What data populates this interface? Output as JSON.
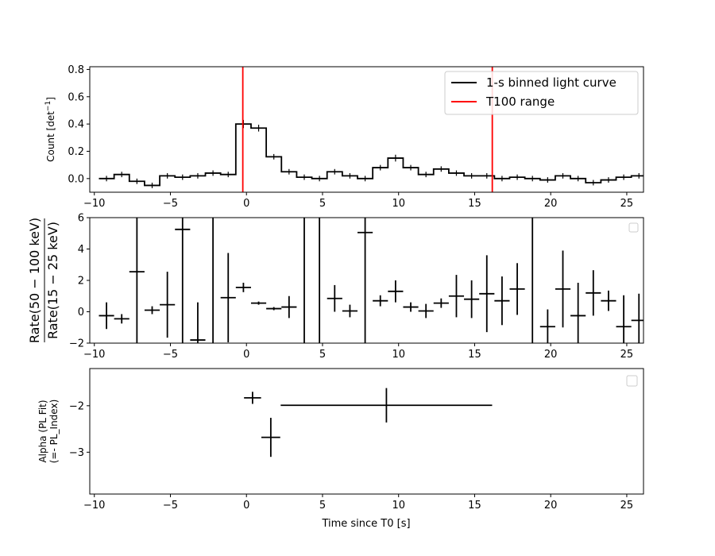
{
  "chart_data": [
    {
      "id": "top",
      "type": "line",
      "ylabel": "Count [det$^{-1}$]",
      "ylabel_parts": [
        "Count [det",
        "−1",
        "]"
      ],
      "xlim": [
        -10.3,
        26.1
      ],
      "ylim": [
        -0.1,
        0.82
      ],
      "xticks": [
        -10,
        -5,
        0,
        5,
        10,
        15,
        20,
        25
      ],
      "yticks": [
        0.0,
        0.2,
        0.4,
        0.6,
        0.8
      ],
      "ytick_labels": [
        "0.0",
        "0.2",
        "0.4",
        "0.6",
        "0.8"
      ],
      "bin_edges": [
        -9.7,
        -8.7,
        -7.7,
        -6.7,
        -5.7,
        -4.7,
        -3.7,
        -2.7,
        -1.7,
        -0.7,
        0.3,
        1.3,
        2.3,
        3.3,
        4.3,
        5.3,
        6.3,
        7.3,
        8.3,
        9.3,
        10.3,
        11.3,
        12.3,
        13.3,
        14.3,
        15.3,
        16.3,
        17.3,
        18.3,
        19.3,
        20.3,
        21.3,
        22.3,
        23.3,
        24.3,
        25.3,
        26.3
      ],
      "values": [
        0.0,
        0.03,
        -0.02,
        -0.05,
        0.02,
        0.01,
        0.02,
        0.04,
        0.03,
        0.4,
        0.37,
        0.16,
        0.05,
        0.01,
        0.0,
        0.05,
        0.02,
        0.0,
        0.08,
        0.15,
        0.08,
        0.03,
        0.07,
        0.04,
        0.02,
        0.02,
        0.0,
        0.01,
        0.0,
        -0.01,
        0.02,
        0.0,
        -0.03,
        -0.01,
        0.01,
        0.02
      ],
      "errors": [
        0.02,
        0.02,
        0.02,
        0.02,
        0.02,
        0.02,
        0.02,
        0.02,
        0.02,
        0.03,
        0.025,
        0.02,
        0.02,
        0.02,
        0.02,
        0.02,
        0.02,
        0.02,
        0.02,
        0.025,
        0.02,
        0.02,
        0.02,
        0.02,
        0.02,
        0.02,
        0.02,
        0.02,
        0.02,
        0.02,
        0.02,
        0.02,
        0.02,
        0.02,
        0.02,
        0.02
      ],
      "t100_range": [
        -0.24,
        16.16
      ],
      "legend": {
        "placement": "top-right",
        "entries": [
          {
            "label": "1-s binned light curve",
            "color": "#000000"
          },
          {
            "label": "T100 range",
            "color": "#ff0000"
          }
        ]
      }
    },
    {
      "id": "middle",
      "type": "scatter",
      "ylabel_numerator": "Rate(50 − 100 keV)",
      "ylabel_denominator": "Rate(15 − 25 keV)",
      "xlim": [
        -10.3,
        26.1
      ],
      "ylim": [
        -2,
        6
      ],
      "xticks": [
        -10,
        -5,
        0,
        5,
        10,
        15,
        20,
        25
      ],
      "yticks": [
        -2,
        0,
        2,
        4,
        6
      ],
      "ytick_labels": [
        "−2",
        "0",
        "2",
        "4",
        "6"
      ],
      "points": [
        {
          "x": -9.2,
          "y": -0.25,
          "xerr": 0.5,
          "yerr": 0.85
        },
        {
          "x": -8.2,
          "y": -0.45,
          "xerr": 0.5,
          "yerr": 0.3
        },
        {
          "x": -7.2,
          "y": 2.55,
          "xerr": 0.5,
          "yerr": 8.0
        },
        {
          "x": -6.2,
          "y": 0.1,
          "xerr": 0.5,
          "yerr": 0.25
        },
        {
          "x": -5.2,
          "y": 0.45,
          "xerr": 0.5,
          "yerr": 2.1
        },
        {
          "x": -4.2,
          "y": 5.25,
          "xerr": 0.5,
          "yerr": 8.0
        },
        {
          "x": -3.2,
          "y": -1.8,
          "xerr": 0.5,
          "yerr": 2.4
        },
        {
          "x": -2.2,
          "y": 2.0,
          "xerr": 0.0,
          "yerr": 8.0
        },
        {
          "x": -1.2,
          "y": 0.9,
          "xerr": 0.5,
          "yerr": 2.85
        },
        {
          "x": -0.2,
          "y": 1.55,
          "xerr": 0.5,
          "yerr": 0.3
        },
        {
          "x": 0.8,
          "y": 0.55,
          "xerr": 0.5,
          "yerr": 0.1
        },
        {
          "x": 1.8,
          "y": 0.2,
          "xerr": 0.5,
          "yerr": 0.1
        },
        {
          "x": 2.8,
          "y": 0.3,
          "xerr": 0.5,
          "yerr": 0.7
        },
        {
          "x": 3.8,
          "y": 2.0,
          "xerr": 0.0,
          "yerr": 8.0
        },
        {
          "x": 4.8,
          "y": 2.0,
          "xerr": 0.0,
          "yerr": 8.0
        },
        {
          "x": 5.8,
          "y": 0.85,
          "xerr": 0.5,
          "yerr": 0.85
        },
        {
          "x": 6.8,
          "y": 0.05,
          "xerr": 0.5,
          "yerr": 0.4
        },
        {
          "x": 7.8,
          "y": 5.05,
          "xerr": 0.5,
          "yerr": 8.0
        },
        {
          "x": 8.8,
          "y": 0.7,
          "xerr": 0.5,
          "yerr": 0.35
        },
        {
          "x": 9.8,
          "y": 1.3,
          "xerr": 0.5,
          "yerr": 0.7
        },
        {
          "x": 10.8,
          "y": 0.3,
          "xerr": 0.5,
          "yerr": 0.3
        },
        {
          "x": 11.8,
          "y": 0.05,
          "xerr": 0.5,
          "yerr": 0.45
        },
        {
          "x": 12.8,
          "y": 0.55,
          "xerr": 0.5,
          "yerr": 0.3
        },
        {
          "x": 13.8,
          "y": 1.0,
          "xerr": 0.5,
          "yerr": 1.35
        },
        {
          "x": 14.8,
          "y": 0.8,
          "xerr": 0.5,
          "yerr": 1.2
        },
        {
          "x": 15.8,
          "y": 1.15,
          "xerr": 0.5,
          "yerr": 2.45
        },
        {
          "x": 16.8,
          "y": 0.7,
          "xerr": 0.5,
          "yerr": 1.55
        },
        {
          "x": 17.8,
          "y": 1.45,
          "xerr": 0.5,
          "yerr": 1.65
        },
        {
          "x": 18.8,
          "y": 2.0,
          "xerr": 0.0,
          "yerr": 8.0
        },
        {
          "x": 19.8,
          "y": -0.95,
          "xerr": 0.5,
          "yerr": 1.1
        },
        {
          "x": 20.8,
          "y": 1.45,
          "xerr": 0.5,
          "yerr": 2.45
        },
        {
          "x": 21.8,
          "y": -0.25,
          "xerr": 0.5,
          "yerr": 2.1
        },
        {
          "x": 22.8,
          "y": 1.2,
          "xerr": 0.5,
          "yerr": 1.45
        },
        {
          "x": 23.8,
          "y": 0.7,
          "xerr": 0.5,
          "yerr": 0.65
        },
        {
          "x": 24.8,
          "y": -0.95,
          "xerr": 0.5,
          "yerr": 2.0
        },
        {
          "x": 25.8,
          "y": -0.55,
          "xerr": 0.5,
          "yerr": 1.7
        }
      ],
      "legend": {
        "placement": "top-right",
        "entries": []
      }
    },
    {
      "id": "bottom",
      "type": "scatter",
      "ylabel_line1": "Alpha (PL Fit)",
      "ylabel_line2": "(=- PL_Index)",
      "xlabel": "Time since T0 [s]",
      "xlim": [
        -10.3,
        26.1
      ],
      "ylim": [
        -3.9,
        -1.2
      ],
      "xticks": [
        -10,
        -5,
        0,
        5,
        10,
        15,
        20,
        25
      ],
      "yticks": [
        -2,
        -3
      ],
      "ytick_labels": [
        "−2",
        "−3"
      ],
      "points": [
        {
          "x": 0.4,
          "y": -1.83,
          "xerr": 0.56,
          "yerr": 0.13
        },
        {
          "x": 1.6,
          "y": -2.68,
          "xerr": 0.62,
          "yerr": 0.42
        },
        {
          "x": 9.2,
          "y": -1.99,
          "xerr": 6.95,
          "yerr": 0.37
        }
      ],
      "legend": {
        "placement": "top-right",
        "entries": []
      }
    }
  ],
  "xtick_labels": [
    "−10",
    "−5",
    "0",
    "5",
    "10",
    "15",
    "20",
    "25"
  ],
  "colors": {
    "data": "#000000",
    "t100": "#ff0000",
    "axes": "#000000"
  }
}
